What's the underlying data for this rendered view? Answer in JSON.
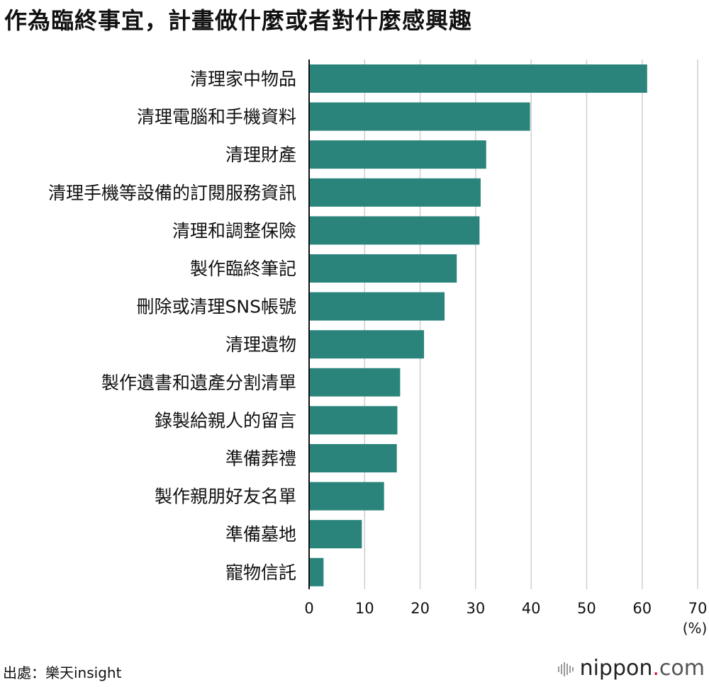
{
  "title": "作為臨終事宜，計畫做什麼或者對什麼感興趣",
  "source": "出處：樂天insight",
  "logo": {
    "main": "nippon",
    "dot": ".",
    "suffix": "com"
  },
  "colors": {
    "bar": "#2a847b",
    "grid": "#cfcfcf",
    "axis": "#111111",
    "logo_dot": "#d0102b"
  },
  "chart_data": {
    "type": "bar",
    "orientation": "horizontal",
    "categories": [
      "清理家中物品",
      "清理電腦和手機資料",
      "清理財產",
      "清理手機等設備的訂閱服務資訊",
      "清理和調整保險",
      "製作臨終筆記",
      "刪除或清理SNS帳號",
      "清理遺物",
      "製作遺書和遺產分割清單",
      "錄製給親人的留言",
      "準備葬禮",
      "製作親朋好友名單",
      "準備墓地",
      "寵物信託"
    ],
    "values": [
      60.9,
      39.8,
      31.9,
      30.9,
      30.7,
      26.6,
      24.4,
      20.7,
      16.4,
      15.9,
      15.8,
      13.5,
      9.5,
      2.6
    ],
    "xlim": [
      0,
      70
    ],
    "xticks": [
      "0",
      "10",
      "20",
      "30",
      "40",
      "50",
      "60",
      "70"
    ],
    "xlabel": "(%)",
    "grid": "vertical"
  }
}
